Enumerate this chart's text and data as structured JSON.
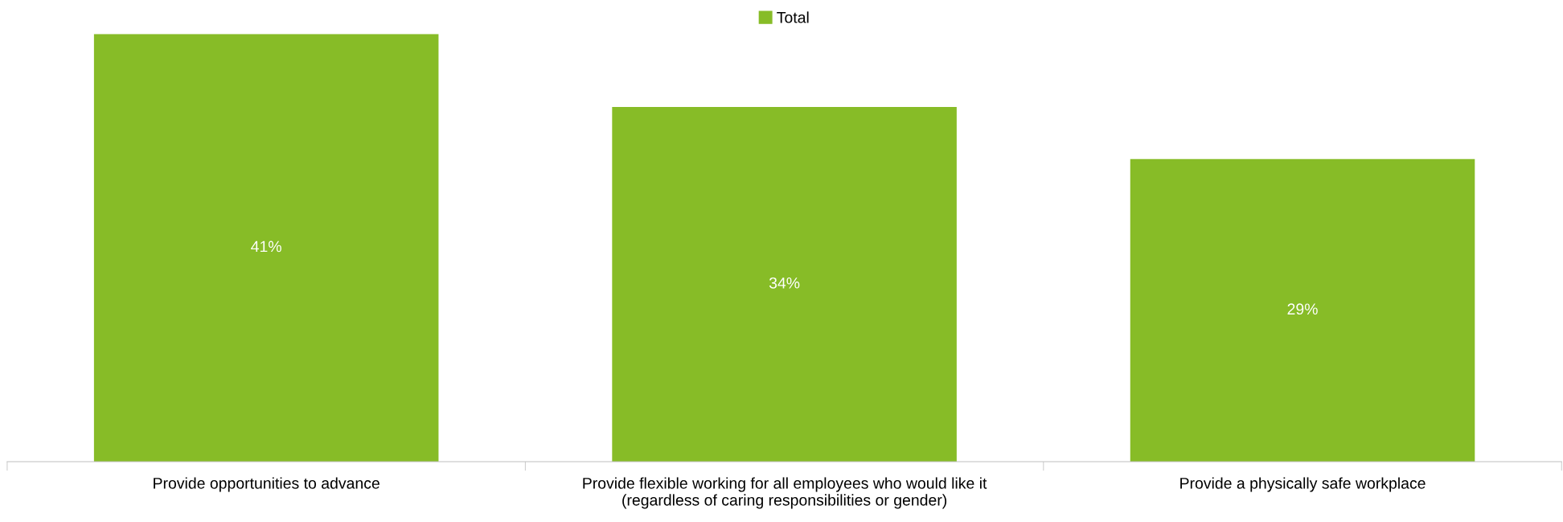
{
  "chart_data": {
    "type": "bar",
    "categories": [
      "Provide opportunities to advance",
      "Provide flexible working for all employees who would like it\n(regardless of caring responsibilities or gender)",
      "Provide a physically safe workplace"
    ],
    "series": [
      {
        "name": "Total",
        "color": "#87bc27",
        "values": [
          41,
          34,
          29
        ],
        "value_labels": [
          "41%",
          "34%",
          "29%"
        ]
      }
    ],
    "legend": "top",
    "grid": false
  }
}
